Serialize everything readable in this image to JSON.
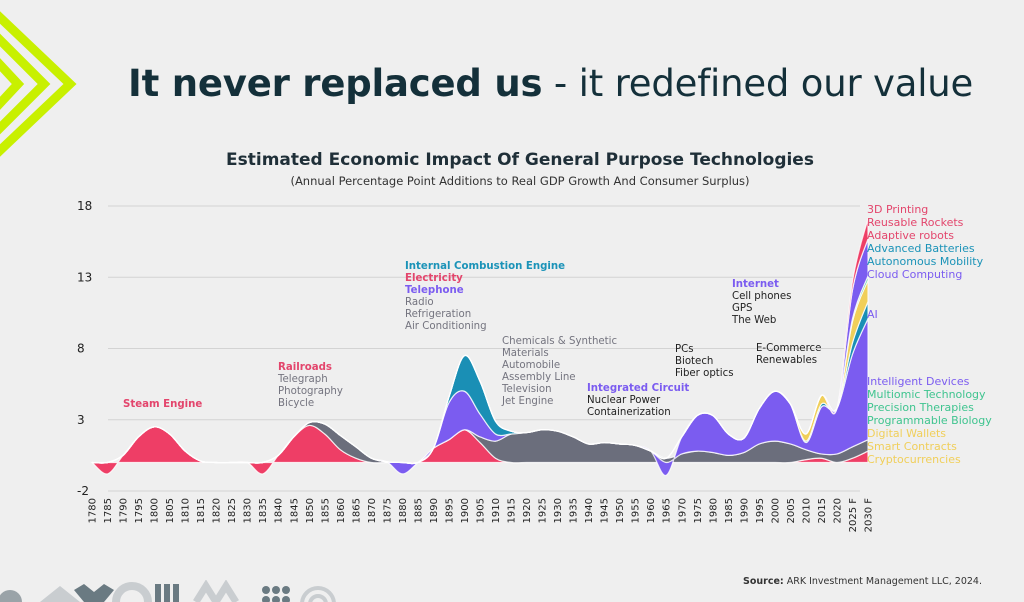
{
  "slide": {
    "title_bold": "It never replaced us",
    "title_rest": " - it redefined our value",
    "source_label": "Source:",
    "source_text": " ARK Investment Management LLC, 2024."
  },
  "colors": {
    "accent_lime": "#c8f000",
    "steam_rail_electricity": "#ee3e66",
    "telephone_it_ai": "#7b5cf0",
    "ice_batteries": "#1a8fb5",
    "other_gray": "#6b6e7c",
    "crypto": "#f0cf5a",
    "biology": "#3fc48f",
    "text_dark": "#1f2f38"
  },
  "chart_data": {
    "type": "area",
    "title": "Estimated Economic Impact Of General Purpose Technologies",
    "subtitle": "(Annual Percentage Point Additions to Real GDP Growth And Consumer Surplus)",
    "xlabel": "",
    "ylabel": "",
    "ylim": [
      -2,
      18
    ],
    "yticks": [
      "18",
      "13",
      "8",
      "3",
      "-2"
    ],
    "ytick_values": [
      18,
      13,
      8,
      3,
      -2
    ],
    "grid": true,
    "x": [
      "1780",
      "1785",
      "1790",
      "1795",
      "1800",
      "1805",
      "1810",
      "1815",
      "1820",
      "1825",
      "1830",
      "1835",
      "1840",
      "1845",
      "1850",
      "1855",
      "1860",
      "1865",
      "1870",
      "1875",
      "1880",
      "1885",
      "1890",
      "1895",
      "1900",
      "1905",
      "1910",
      "1915",
      "1920",
      "1925",
      "1930",
      "1935",
      "1940",
      "1945",
      "1950",
      "1955",
      "1960",
      "1965",
      "1970",
      "1975",
      "1980",
      "1985",
      "1990",
      "1995",
      "2000",
      "2005",
      "2010",
      "2015",
      "2020",
      "2025 F",
      "2030 F"
    ],
    "series": [
      {
        "name": "Steam / Railroads / Electricity",
        "color": "#ee3e66",
        "values": [
          0,
          -0.8,
          0.5,
          1.8,
          2.5,
          2.0,
          0.8,
          0.1,
          0,
          0,
          0,
          -0.8,
          0.5,
          1.8,
          2.6,
          2.0,
          0.9,
          0.3,
          0,
          0,
          0,
          0,
          1.0,
          1.6,
          2.3,
          1.4,
          0.3,
          0,
          0,
          0,
          0,
          0,
          0,
          0,
          0,
          0,
          0,
          0,
          0,
          0,
          0,
          0,
          0,
          0,
          0,
          0,
          0.2,
          0.3,
          0,
          0.3,
          0.8
        ]
      },
      {
        "name": "Gray (Telegraph, Photography, Bicycle, Chemicals, etc.)",
        "color": "#6b6e7c",
        "values": [
          0,
          0,
          0,
          0,
          0,
          0,
          0,
          0,
          0,
          0,
          0,
          0,
          0,
          0,
          0.2,
          0.7,
          1.0,
          0.8,
          0.3,
          0.05,
          0,
          0,
          0,
          0,
          0,
          0.4,
          1.2,
          2.0,
          2.1,
          2.3,
          2.2,
          1.8,
          1.3,
          1.4,
          1.3,
          1.2,
          0.8,
          0.3,
          0.6,
          0.8,
          0.7,
          0.5,
          0.7,
          1.3,
          1.5,
          1.3,
          0.7,
          0.3,
          0.6,
          0.8,
          0.8
        ]
      },
      {
        "name": "Telephone / Integrated Circuit / Internet / AI",
        "color": "#7b5cf0",
        "values": [
          0,
          0,
          0,
          0,
          0,
          0,
          0,
          0,
          0,
          0,
          0,
          0,
          0,
          0,
          0,
          0,
          0,
          0,
          0,
          0,
          -0.8,
          0,
          0,
          2.6,
          2.7,
          1.6,
          0.5,
          0,
          0,
          0,
          0,
          0,
          0,
          0,
          0,
          0,
          0,
          -0.9,
          1.2,
          2.5,
          2.6,
          1.5,
          1.0,
          2.5,
          3.5,
          2.8,
          0.5,
          3.3,
          3.2,
          6.5,
          8.5
        ]
      },
      {
        "name": "Internal Combustion Engine / Advanced Batteries",
        "color": "#1a8fb5",
        "values": [
          0,
          0,
          0,
          0,
          0,
          0,
          0,
          0,
          0,
          0,
          0,
          0,
          0,
          0,
          0,
          0,
          0,
          0,
          0,
          0,
          0,
          0,
          0,
          0.4,
          2.5,
          2.3,
          0.9,
          0.2,
          0,
          0,
          0,
          0,
          0,
          0,
          0,
          0,
          0,
          0,
          0,
          0,
          0,
          0,
          0,
          0,
          0,
          0,
          0.1,
          0.2,
          0,
          0.8,
          1.2
        ]
      },
      {
        "name": "Crypto (Digital Wallets, Smart Contracts, Cryptocurrencies)",
        "color": "#f0cf5a",
        "values": [
          0,
          0,
          0,
          0,
          0,
          0,
          0,
          0,
          0,
          0,
          0,
          0,
          0,
          0,
          0,
          0,
          0,
          0,
          0,
          0,
          0,
          0,
          0,
          0,
          0,
          0,
          0,
          0,
          0,
          0,
          0,
          0,
          0,
          0,
          0,
          0,
          0,
          0,
          0,
          0,
          0,
          0,
          0,
          0,
          0,
          0,
          0.5,
          0.6,
          0,
          1.5,
          1.5
        ]
      },
      {
        "name": "Biology (Multiomic, Precision Therapies, Programmable Biology)",
        "color": "#3fc48f",
        "values": [
          0,
          0,
          0,
          0,
          0,
          0,
          0,
          0,
          0,
          0,
          0,
          0,
          0,
          0,
          0,
          0,
          0,
          0,
          0,
          0,
          0,
          0,
          0,
          0,
          0,
          0,
          0,
          0,
          0,
          0,
          0,
          0,
          0,
          0,
          0,
          0,
          0,
          0,
          0,
          0,
          0,
          0,
          0,
          0,
          0,
          0,
          0,
          0,
          0,
          0.2,
          0.3
        ]
      },
      {
        "name": "AI / Cloud upper band",
        "color": "#7b5cf0",
        "values": [
          0,
          0,
          0,
          0,
          0,
          0,
          0,
          0,
          0,
          0,
          0,
          0,
          0,
          0,
          0,
          0,
          0,
          0,
          0,
          0,
          0,
          0,
          0,
          0,
          0,
          0,
          0,
          0,
          0,
          0,
          0,
          0,
          0,
          0,
          0,
          0,
          0,
          0,
          0,
          0,
          0,
          0,
          0,
          0,
          0,
          0,
          0,
          0,
          0,
          2.0,
          2.6
        ]
      },
      {
        "name": "Robotics / Rockets / 3D Printing",
        "color": "#ee3e66",
        "values": [
          0,
          0,
          0,
          0,
          0,
          0,
          0,
          0,
          0,
          0,
          0,
          0,
          0,
          0,
          0,
          0,
          0,
          0,
          0,
          0,
          0,
          0,
          0,
          0,
          0,
          0,
          0,
          0,
          0,
          0,
          0,
          0,
          0,
          0,
          0,
          0,
          0,
          0,
          0,
          0,
          0,
          0,
          0,
          0,
          0,
          0,
          0,
          0,
          0,
          0.6,
          1.4
        ]
      }
    ],
    "annotations": [
      {
        "lines": [
          {
            "text": "Steam Engine",
            "color": "#e3456c",
            "bold": true
          }
        ]
      },
      {
        "lines": [
          {
            "text": "Railroads",
            "color": "#e3456c",
            "bold": true
          },
          {
            "text": "Telegraph",
            "color": "#74747f"
          },
          {
            "text": "Photography",
            "color": "#74747f"
          },
          {
            "text": "Bicycle",
            "color": "#74747f"
          }
        ]
      },
      {
        "lines": [
          {
            "text": "Internal Combustion Engine",
            "color": "#1b93b8",
            "bold": true
          },
          {
            "text": "Electricity",
            "color": "#e3456c",
            "bold": true
          },
          {
            "text": "Telephone",
            "color": "#7b5cf0",
            "bold": true
          },
          {
            "text": "Radio",
            "color": "#74747f"
          },
          {
            "text": "Refrigeration",
            "color": "#74747f"
          },
          {
            "text": "Air Conditioning",
            "color": "#74747f"
          }
        ]
      },
      {
        "lines": [
          {
            "text": "Chemicals & Synthetic",
            "color": "#74747f"
          },
          {
            "text": "Materials",
            "color": "#74747f"
          },
          {
            "text": "Automobile",
            "color": "#74747f"
          },
          {
            "text": "Assembly Line",
            "color": "#74747f"
          },
          {
            "text": "Television",
            "color": "#74747f"
          },
          {
            "text": "Jet Engine",
            "color": "#74747f"
          }
        ]
      },
      {
        "lines": [
          {
            "text": "Integrated Circuit",
            "color": "#7b5cf0",
            "bold": true
          },
          {
            "text": "Nuclear Power",
            "color": "#222222"
          },
          {
            "text": "Containerization",
            "color": "#222222"
          }
        ]
      },
      {
        "lines": [
          {
            "text": "PCs",
            "color": "#222222"
          },
          {
            "text": "Biotech",
            "color": "#222222"
          },
          {
            "text": "Fiber optics",
            "color": "#222222"
          }
        ]
      },
      {
        "lines": [
          {
            "text": "Internet",
            "color": "#7b5cf0",
            "bold": true
          },
          {
            "text": "Cell phones",
            "color": "#222222"
          },
          {
            "text": "GPS",
            "color": "#222222"
          },
          {
            "text": "The Web",
            "color": "#222222"
          }
        ]
      },
      {
        "lines": [
          {
            "text": "E-Commerce",
            "color": "#222222"
          },
          {
            "text": "Renewables",
            "color": "#222222"
          }
        ]
      }
    ],
    "legend": [
      {
        "text": "3D Printing",
        "color": "#e3456c"
      },
      {
        "text": "Reusable Rockets",
        "color": "#e3456c"
      },
      {
        "text": "Adaptive robots",
        "color": "#e3456c"
      },
      {
        "text": "Advanced Batteries",
        "color": "#1b93b8"
      },
      {
        "text": "Autonomous Mobility",
        "color": "#1b93b8"
      },
      {
        "text": "Cloud Computing",
        "color": "#7b5cf0"
      },
      {
        "text": "AI",
        "color": "#7b5cf0"
      },
      {
        "text": "Intelligent Devices",
        "color": "#7b5cf0"
      },
      {
        "text": "Multiomic Technology",
        "color": "#3fc48f"
      },
      {
        "text": "Precision Therapies",
        "color": "#3fc48f"
      },
      {
        "text": "Programmable Biology",
        "color": "#3fc48f"
      },
      {
        "text": "Digital Wallets",
        "color": "#f0cf5a"
      },
      {
        "text": "Smart Contracts",
        "color": "#f0cf5a"
      },
      {
        "text": "Cryptocurrencies",
        "color": "#f0cf5a"
      }
    ],
    "legend_position": "right"
  }
}
